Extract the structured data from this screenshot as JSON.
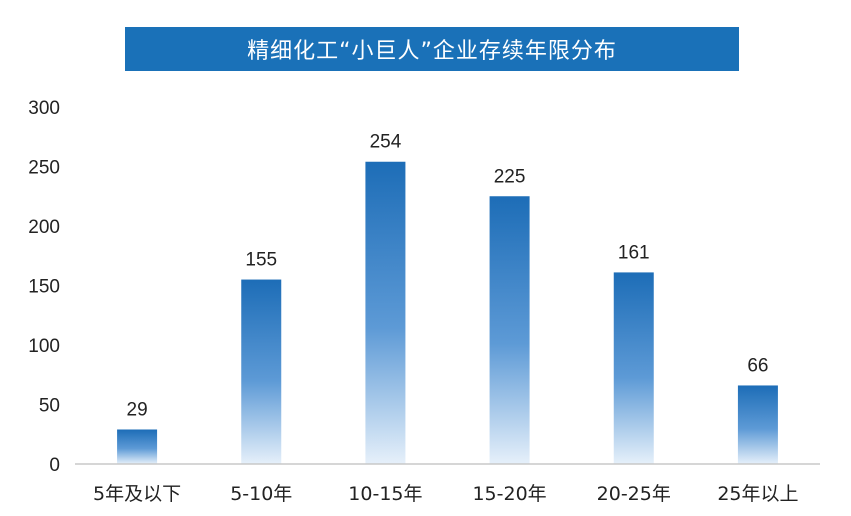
{
  "header": {
    "title": "精细化工“小巨人”企业存续年限分布"
  },
  "chart_data": {
    "type": "bar",
    "title": "精细化工“小巨人”企业存续年限分布",
    "categories": [
      "5年及以下",
      "5-10年",
      "10-15年",
      "15-20年",
      "20-25年",
      "25年以上"
    ],
    "values": [
      29,
      155,
      254,
      225,
      161,
      66
    ],
    "yticks": [
      "0",
      "50",
      "100",
      "150",
      "200",
      "250",
      "300"
    ],
    "ylim": [
      0,
      300
    ],
    "grid": false,
    "legend": "none",
    "colors": {
      "bar_top": "#1d6db7",
      "bar_bottom": "#e6f0fa",
      "title_bg": "#1a71b8",
      "axis": "#c8c8c8"
    }
  }
}
